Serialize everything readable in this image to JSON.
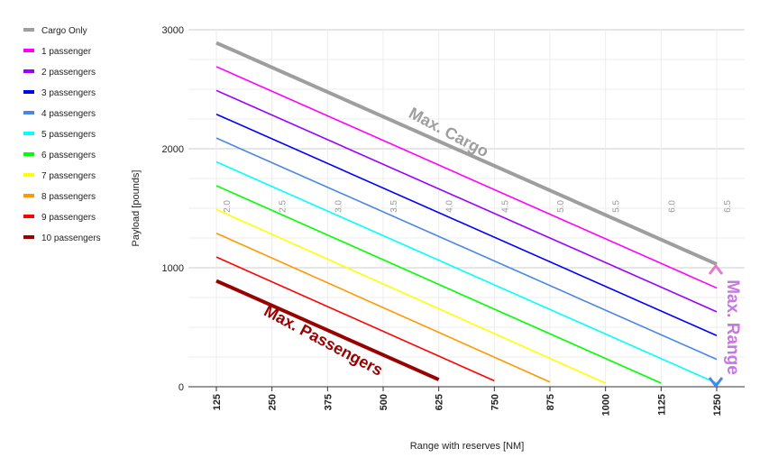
{
  "chart_data": {
    "type": "line",
    "xlabel": "Range with reserves [NM]",
    "ylabel": "Payload [pounds]",
    "xlim": [
      125,
      1250
    ],
    "ylim": [
      0,
      3000
    ],
    "x_ticks": [
      "125",
      "250",
      "375",
      "500",
      "625",
      "750",
      "875",
      "1000",
      "1125",
      "1250"
    ],
    "y_ticks": [
      "0",
      "1000",
      "2000",
      "3000"
    ],
    "grid": true,
    "legend_position": "left",
    "series": [
      {
        "name": "Cargo Only",
        "color": "#9e9e9e",
        "bold": true,
        "x": [
          125,
          1250
        ],
        "y": [
          2890,
          1030
        ]
      },
      {
        "name": "1 passenger",
        "color": "#ff00ff",
        "x": [
          125,
          1250
        ],
        "y": [
          2690,
          830
        ]
      },
      {
        "name": "2 passengers",
        "color": "#9900ff",
        "x": [
          125,
          1250
        ],
        "y": [
          2490,
          630
        ]
      },
      {
        "name": "3 passengers",
        "color": "#0000ff",
        "x": [
          125,
          1250
        ],
        "y": [
          2290,
          430
        ]
      },
      {
        "name": "4 passengers",
        "color": "#4a86e8",
        "x": [
          125,
          1250
        ],
        "y": [
          2090,
          230
        ]
      },
      {
        "name": "5 passengers",
        "color": "#00ffff",
        "x": [
          125,
          1250
        ],
        "y": [
          1890,
          30
        ]
      },
      {
        "name": "6 passengers",
        "color": "#00ff00",
        "x": [
          125,
          1125
        ],
        "y": [
          1690,
          30
        ]
      },
      {
        "name": "7 passengers",
        "color": "#ffff00",
        "x": [
          125,
          1000
        ],
        "y": [
          1490,
          30
        ]
      },
      {
        "name": "8 passengers",
        "color": "#ff9900",
        "x": [
          125,
          875
        ],
        "y": [
          1290,
          40
        ]
      },
      {
        "name": "9 passengers",
        "color": "#ff0000",
        "x": [
          125,
          750
        ],
        "y": [
          1090,
          50
        ]
      },
      {
        "name": "10 passengers",
        "color": "#990000",
        "bold": true,
        "x": [
          125,
          625
        ],
        "y": [
          890,
          60
        ]
      }
    ],
    "time_labels": {
      "values": [
        "2.0",
        "2.5",
        "3.0",
        "3.5",
        "4.0",
        "4.5",
        "5.0",
        "5.5",
        "6.0",
        "6.5"
      ],
      "x": [
        125,
        250,
        375,
        500,
        625,
        750,
        875,
        1000,
        1125,
        1250
      ]
    },
    "annotations": [
      {
        "text": "Max. Cargo",
        "color": "#9e9e9e"
      },
      {
        "text": "Max. Passengers",
        "color": "#990000"
      },
      {
        "text": "Max. Range",
        "color": "#c678dd"
      }
    ]
  }
}
